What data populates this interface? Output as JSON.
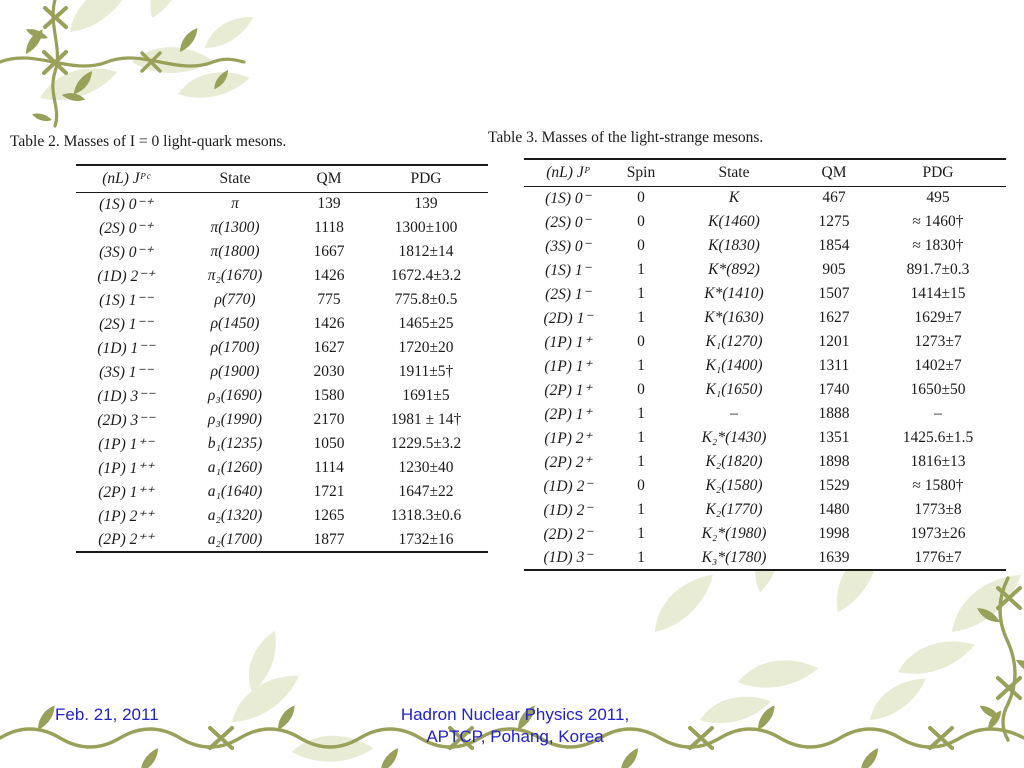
{
  "slide": {
    "footer": {
      "date": "Feb. 21, 2011",
      "venue_line1": "Hadron Nuclear Physics 2011,",
      "venue_line2": "APTCP, Pohang, Korea"
    },
    "accent_colors": {
      "vine": "#99a05a",
      "leaf_watermark": "#e9ecd4",
      "footer_text": "#2222cc",
      "table_text": "#1b1b1b"
    }
  },
  "tables": [
    {
      "caption": "Table 2. Masses of I = 0 light-quark mesons.",
      "columns": [
        "(nL) Jᴾᶜ",
        "State",
        "QM",
        "PDG"
      ],
      "rows": [
        [
          "(1S) 0⁻⁺",
          "π",
          "139",
          "139"
        ],
        [
          "(2S) 0⁻⁺",
          "π(1300)",
          "1118",
          "1300±100"
        ],
        [
          "(3S) 0⁻⁺",
          "π(1800)",
          "1667",
          "1812±14"
        ],
        [
          "(1D) 2⁻⁺",
          "π₂(1670)",
          "1426",
          "1672.4±3.2"
        ],
        [
          "(1S) 1⁻⁻",
          "ρ(770)",
          "775",
          "775.8±0.5"
        ],
        [
          "(2S) 1⁻⁻",
          "ρ(1450)",
          "1426",
          "1465±25"
        ],
        [
          "(1D) 1⁻⁻",
          "ρ(1700)",
          "1627",
          "1720±20"
        ],
        [
          "(3S) 1⁻⁻",
          "ρ(1900)",
          "2030",
          "1911±5†"
        ],
        [
          "(1D) 3⁻⁻",
          "ρ₃(1690)",
          "1580",
          "1691±5"
        ],
        [
          "(2D) 3⁻⁻",
          "ρ₃(1990)",
          "2170",
          "1981 ± 14†"
        ],
        [
          "(1P) 1⁺⁻",
          "b₁(1235)",
          "1050",
          "1229.5±3.2"
        ],
        [
          "(1P) 1⁺⁺",
          "a₁(1260)",
          "1114",
          "1230±40"
        ],
        [
          "(2P) 1⁺⁺",
          "a₁(1640)",
          "1721",
          "1647±22"
        ],
        [
          "(1P) 2⁺⁺",
          "a₂(1320)",
          "1265",
          "1318.3±0.6"
        ],
        [
          "(2P) 2⁺⁺",
          "a₂(1700)",
          "1877",
          "1732±16"
        ]
      ]
    },
    {
      "caption": "Table 3. Masses of the light-strange mesons.",
      "columns": [
        "(nL) Jᴾ",
        "Spin",
        "State",
        "QM",
        "PDG"
      ],
      "rows": [
        [
          "(1S) 0⁻",
          "0",
          "K",
          "467",
          "495"
        ],
        [
          "(2S) 0⁻",
          "0",
          "K(1460)",
          "1275",
          "≈ 1460†"
        ],
        [
          "(3S) 0⁻",
          "0",
          "K(1830)",
          "1854",
          "≈ 1830†"
        ],
        [
          "(1S) 1⁻",
          "1",
          "K*(892)",
          "905",
          "891.7±0.3"
        ],
        [
          "(2S) 1⁻",
          "1",
          "K*(1410)",
          "1507",
          "1414±15"
        ],
        [
          "(2D) 1⁻",
          "1",
          "K*(1630)",
          "1627",
          "1629±7"
        ],
        [
          "(1P) 1⁺",
          "0",
          "K₁(1270)",
          "1201",
          "1273±7"
        ],
        [
          "(1P) 1⁺",
          "1",
          "K₁(1400)",
          "1311",
          "1402±7"
        ],
        [
          "(2P) 1⁺",
          "0",
          "K₁(1650)",
          "1740",
          "1650±50"
        ],
        [
          "(2P) 1⁺",
          "1",
          "–",
          "1888",
          "–"
        ],
        [
          "(1P) 2⁺",
          "1",
          "K₂*(1430)",
          "1351",
          "1425.6±1.5"
        ],
        [
          "(2P) 2⁺",
          "1",
          "K₂(1820)",
          "1898",
          "1816±13"
        ],
        [
          "(1D) 2⁻",
          "0",
          "K₂(1580)",
          "1529",
          "≈ 1580†"
        ],
        [
          "(1D) 2⁻",
          "1",
          "K₂(1770)",
          "1480",
          "1773±8"
        ],
        [
          "(2D) 2⁻",
          "1",
          "K₂*(1980)",
          "1998",
          "1973±26"
        ],
        [
          "(1D) 3⁻",
          "1",
          "K₃*(1780)",
          "1639",
          "1776±7"
        ]
      ]
    }
  ]
}
